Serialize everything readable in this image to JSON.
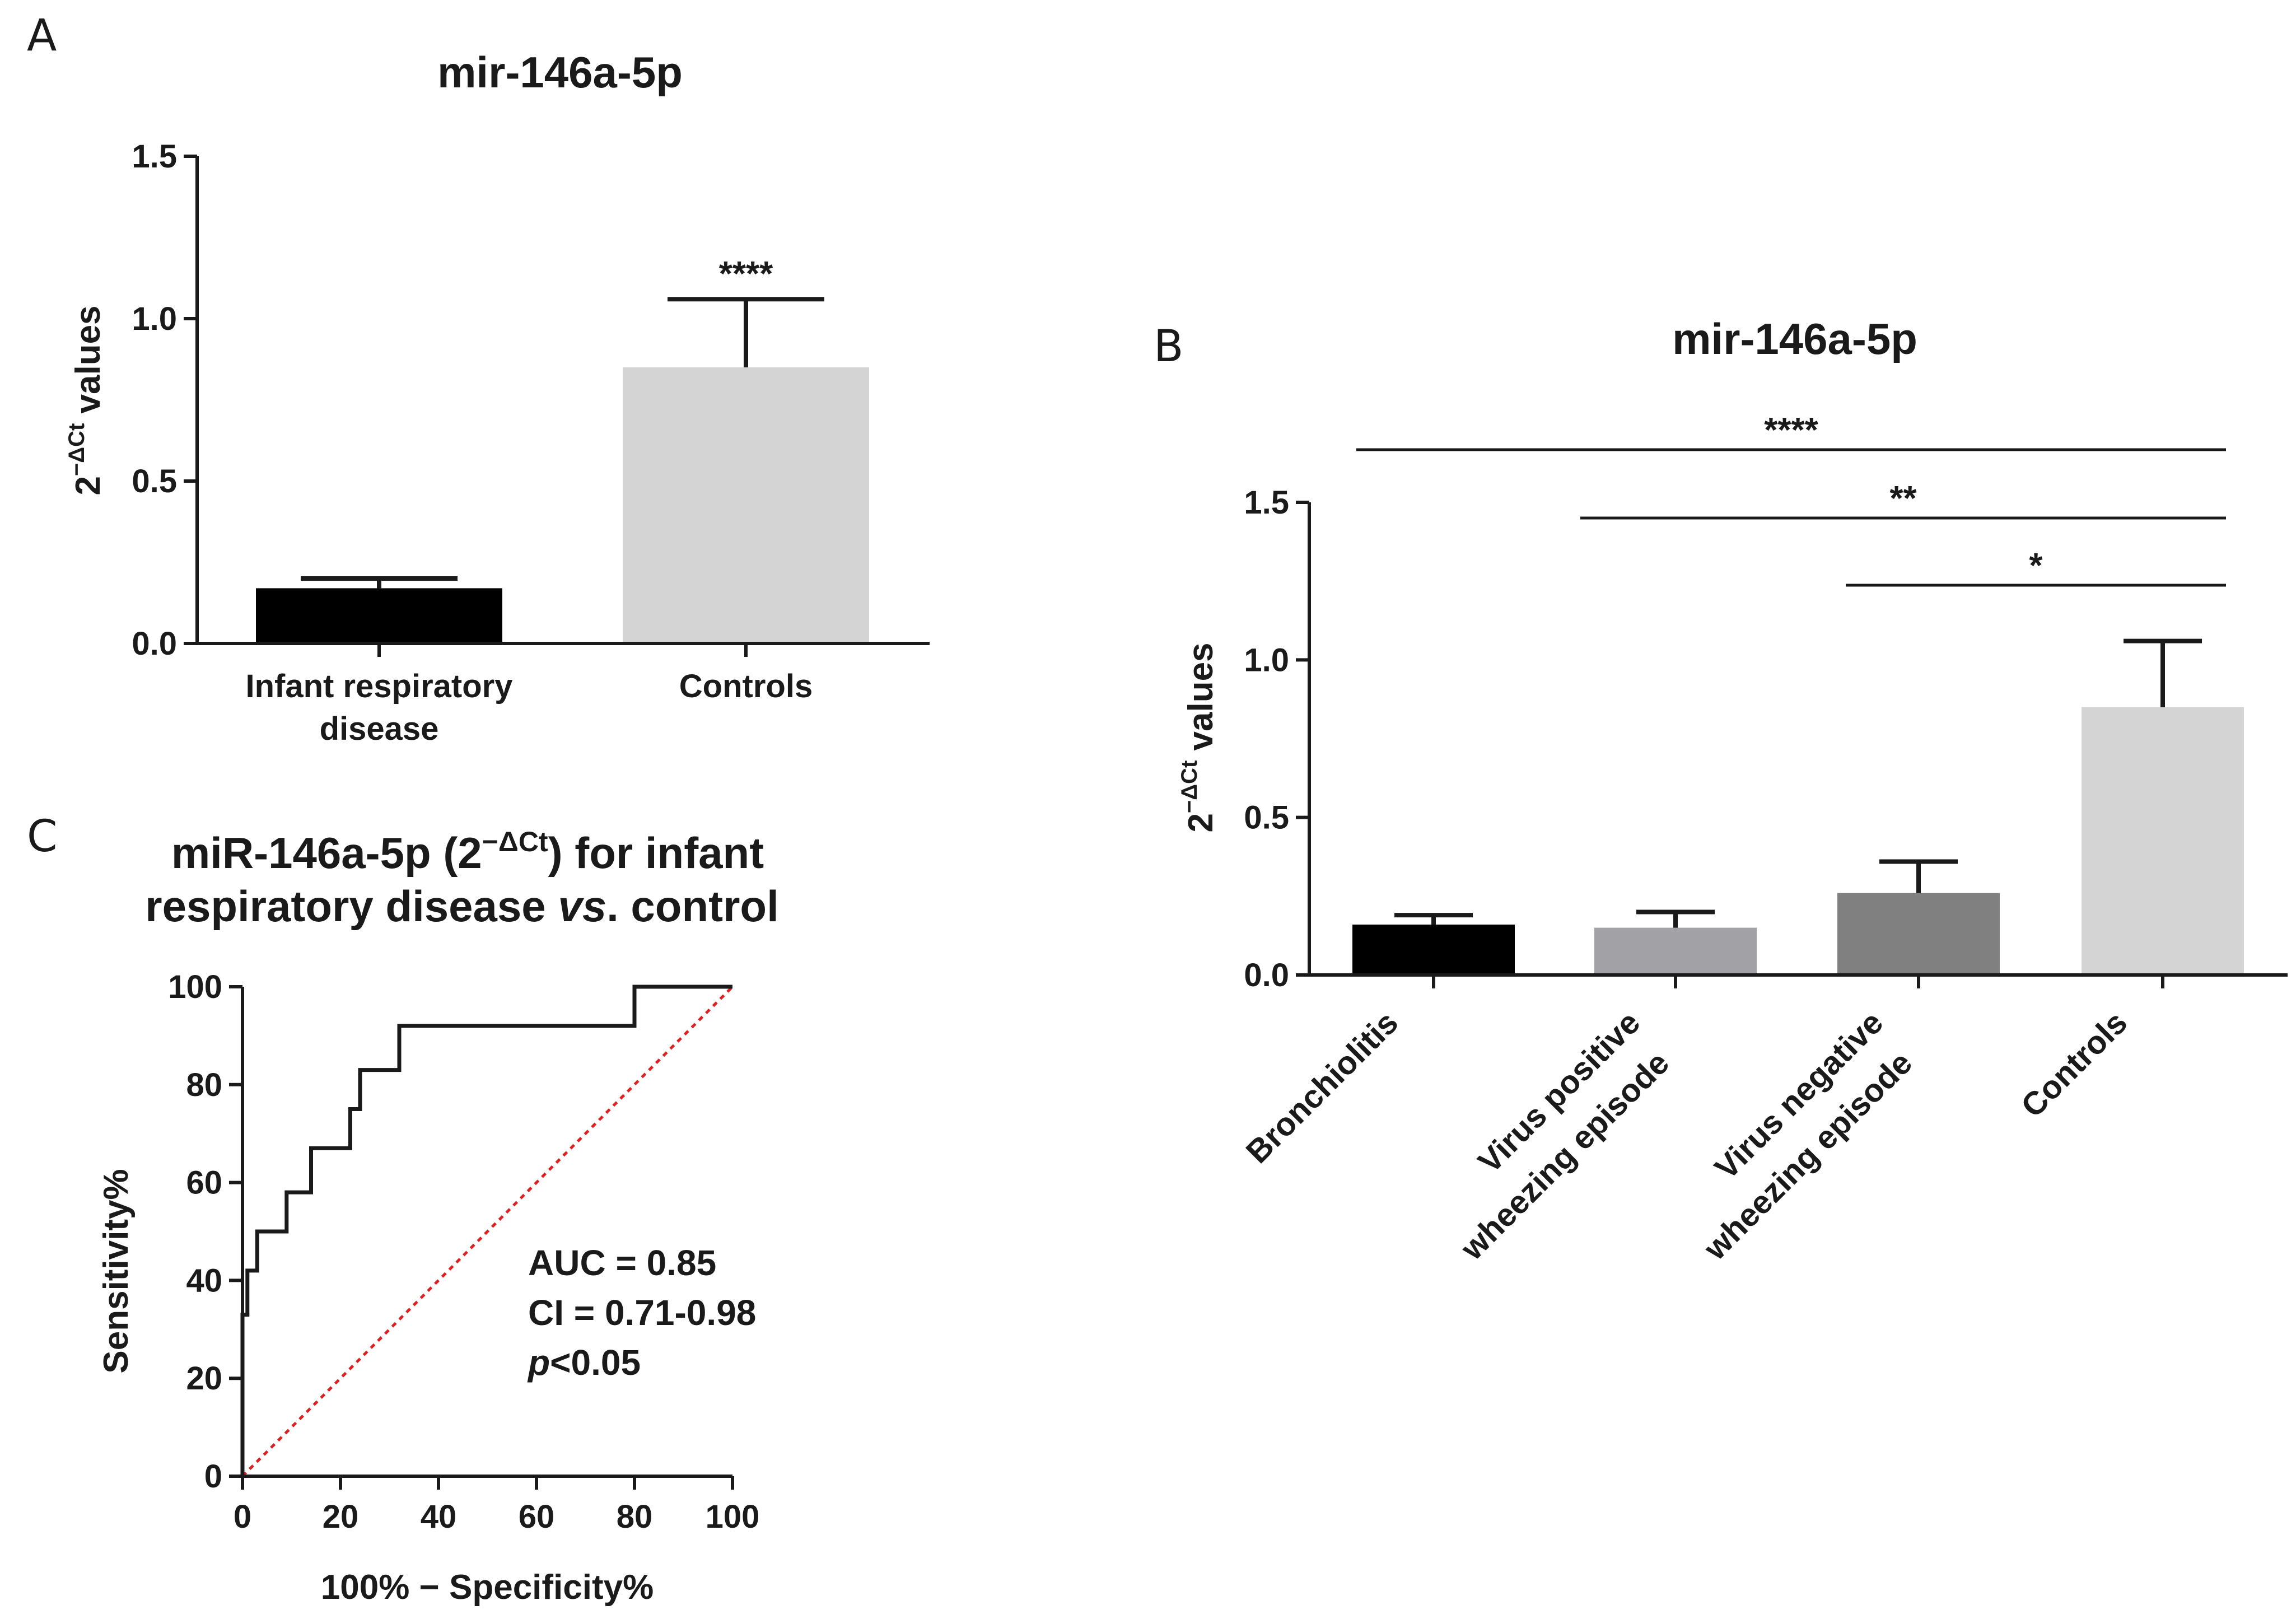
{
  "panels": {
    "A": "A",
    "B": "B",
    "C": "C"
  },
  "colors": {
    "black_bar": "#000000",
    "light_bar": "#d4d4d4",
    "mid_gray_bar": "#a1a1a6",
    "dark_gray_bar": "#808080",
    "reference_line": "#e02020"
  },
  "chart_data": [
    {
      "id": "A",
      "type": "bar",
      "title": "mir-146a-5p",
      "ylabel_base": "2",
      "ylabel_sup": "−ΔCt",
      "ylabel_rest": " values",
      "ylim": [
        0,
        1.5
      ],
      "yticks": [
        0,
        0.5,
        1.0,
        1.5
      ],
      "ytick_labels": [
        "0.0",
        "0.5",
        "1.0",
        "1.5"
      ],
      "categories": [
        {
          "lines": [
            "Infant respiratory",
            "disease"
          ]
        },
        {
          "lines": [
            "Controls"
          ]
        }
      ],
      "values": [
        0.17,
        0.85
      ],
      "error_upper": [
        0.2,
        1.06
      ],
      "bar_colors": [
        "#000000",
        "#d4d4d4"
      ],
      "significance": [
        {
          "category_index": 1,
          "label": "****"
        }
      ]
    },
    {
      "id": "B",
      "type": "bar",
      "title": "mir-146a-5p",
      "ylabel_base": "2",
      "ylabel_sup": "−ΔCt",
      "ylabel_rest": " values",
      "ylim": [
        0,
        1.5
      ],
      "yticks": [
        0,
        0.5,
        1.0,
        1.5
      ],
      "ytick_labels": [
        "0.0",
        "0.5",
        "1.0",
        "1.5"
      ],
      "categories": [
        {
          "lines": [
            "Bronchiolitis"
          ]
        },
        {
          "lines": [
            "Virus positive",
            "wheezing episode"
          ]
        },
        {
          "lines": [
            "Virus negative",
            "wheezing episode"
          ]
        },
        {
          "lines": [
            "Controls"
          ]
        }
      ],
      "values": [
        0.16,
        0.15,
        0.26,
        0.85
      ],
      "error_upper": [
        0.19,
        0.2,
        0.36,
        1.06
      ],
      "bar_colors": [
        "#000000",
        "#a1a1a6",
        "#808080",
        "#d4d4d4"
      ],
      "comparisons": [
        {
          "from": 0,
          "to": 3,
          "label": "****"
        },
        {
          "from": 1,
          "to": 3,
          "label": "**"
        },
        {
          "from": 2,
          "to": 3,
          "label": "*"
        }
      ]
    },
    {
      "id": "C",
      "type": "line",
      "title_line1_pre": "miR-146a-5p (2",
      "title_line1_sup": "−ΔCt",
      "title_line1_post": ") for infant",
      "title_line2_pre": "respiratory disease ",
      "title_line2_italic": "vs",
      "title_line2_post": ". control",
      "xlabel": "100% − Specificity%",
      "ylabel": "Sensitivity%",
      "xlim": [
        0,
        100
      ],
      "ylim": [
        0,
        100
      ],
      "xticks": [
        0,
        20,
        40,
        60,
        80,
        100
      ],
      "yticks": [
        0,
        20,
        40,
        60,
        80,
        100
      ],
      "roc_points": [
        [
          0,
          0
        ],
        [
          0,
          33
        ],
        [
          1,
          33
        ],
        [
          1,
          42
        ],
        [
          3,
          42
        ],
        [
          3,
          50
        ],
        [
          9,
          50
        ],
        [
          9,
          58
        ],
        [
          14,
          58
        ],
        [
          14,
          67
        ],
        [
          22,
          67
        ],
        [
          22,
          75
        ],
        [
          24,
          75
        ],
        [
          24,
          83
        ],
        [
          32,
          83
        ],
        [
          32,
          92
        ],
        [
          80,
          92
        ],
        [
          80,
          100
        ],
        [
          100,
          100
        ]
      ],
      "reference_line": [
        [
          0,
          0
        ],
        [
          100,
          100
        ]
      ],
      "annotation": {
        "auc": "AUC = 0.85",
        "ci": "CI = 0.71-0.98",
        "p_italic": "p",
        "p_rest": "<0.05"
      }
    }
  ]
}
